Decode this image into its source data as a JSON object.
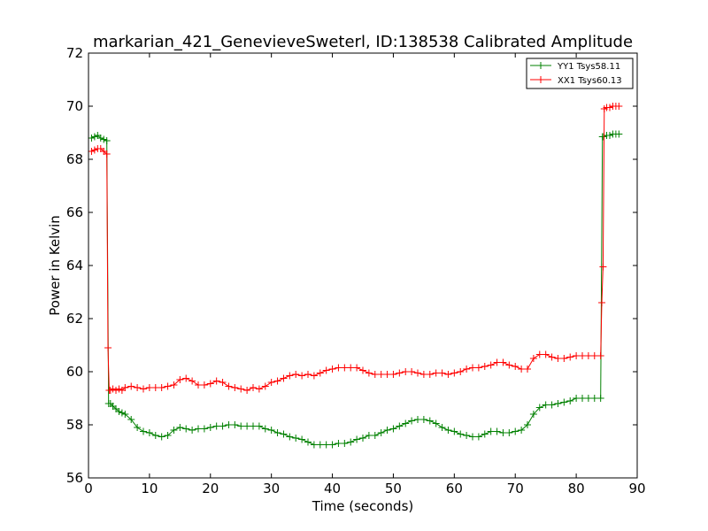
{
  "chart_data": {
    "type": "line",
    "title": "markarian_421_GenevieveSweterl, ID:138538 Calibrated Amplitude",
    "xlabel": "Time (seconds)",
    "ylabel": "Power in Kelvin",
    "xlim": [
      0,
      90
    ],
    "ylim": [
      56,
      72
    ],
    "xticks": [
      "0",
      "10",
      "20",
      "30",
      "40",
      "50",
      "60",
      "70",
      "80",
      "90"
    ],
    "yticks": [
      "56",
      "58",
      "60",
      "62",
      "64",
      "66",
      "68",
      "70",
      "72"
    ],
    "grid": false,
    "legend_position": "top-right",
    "marker": "plus",
    "series": [
      {
        "name": "YY1 Tsys58.11",
        "color": "#008000",
        "x": [
          0.5,
          1.0,
          1.5,
          2.0,
          2.5,
          3.0,
          3.3,
          3.6,
          4.0,
          4.5,
          5.0,
          5.5,
          6.0,
          7.0,
          8.0,
          9.0,
          10.0,
          11.0,
          12.0,
          13.0,
          14.0,
          15.0,
          16.0,
          17.0,
          18.0,
          19.0,
          20.0,
          21.0,
          22.0,
          23.0,
          24.0,
          25.0,
          26.0,
          27.0,
          28.0,
          29.0,
          30.0,
          31.0,
          32.0,
          33.0,
          34.0,
          35.0,
          36.0,
          37.0,
          38.0,
          39.0,
          40.0,
          41.0,
          42.0,
          43.0,
          44.0,
          45.0,
          46.0,
          47.0,
          48.0,
          49.0,
          50.0,
          51.0,
          52.0,
          53.0,
          54.0,
          55.0,
          56.0,
          57.0,
          58.0,
          59.0,
          60.0,
          61.0,
          62.0,
          63.0,
          64.0,
          65.0,
          66.0,
          67.0,
          68.0,
          69.0,
          70.0,
          71.0,
          72.0,
          73.0,
          74.0,
          75.0,
          76.0,
          77.0,
          78.0,
          79.0,
          80.0,
          81.0,
          82.0,
          83.0,
          84.0,
          84.3,
          84.5,
          85.0,
          85.5,
          86.0,
          86.5,
          87.0
        ],
        "y": [
          68.8,
          68.85,
          68.9,
          68.8,
          68.75,
          68.7,
          58.8,
          58.8,
          58.7,
          58.6,
          58.5,
          58.45,
          58.4,
          58.2,
          57.9,
          57.75,
          57.7,
          57.6,
          57.55,
          57.6,
          57.8,
          57.9,
          57.85,
          57.8,
          57.85,
          57.85,
          57.9,
          57.95,
          57.95,
          58.0,
          58.0,
          57.95,
          57.95,
          57.95,
          57.95,
          57.85,
          57.8,
          57.7,
          57.65,
          57.55,
          57.5,
          57.45,
          57.35,
          57.25,
          57.25,
          57.25,
          57.25,
          57.3,
          57.3,
          57.35,
          57.45,
          57.5,
          57.6,
          57.6,
          57.7,
          57.8,
          57.85,
          57.95,
          58.05,
          58.15,
          58.2,
          58.2,
          58.15,
          58.05,
          57.9,
          57.8,
          57.75,
          57.65,
          57.6,
          57.55,
          57.55,
          57.65,
          57.75,
          57.75,
          57.7,
          57.7,
          57.75,
          57.8,
          58.0,
          58.4,
          58.65,
          58.75,
          58.75,
          58.8,
          58.85,
          58.9,
          59.0,
          59.0,
          59.0,
          59.0,
          59.0,
          68.85,
          68.85,
          68.9,
          68.9,
          68.95,
          68.95,
          68.95
        ]
      },
      {
        "name": "XX1 Tsys60.13",
        "color": "#ff0000",
        "x": [
          0.5,
          1.0,
          1.5,
          2.0,
          2.5,
          3.0,
          3.2,
          3.4,
          3.6,
          4.0,
          4.5,
          5.0,
          5.5,
          6.0,
          7.0,
          8.0,
          9.0,
          10.0,
          11.0,
          12.0,
          13.0,
          14.0,
          15.0,
          16.0,
          17.0,
          18.0,
          19.0,
          20.0,
          21.0,
          22.0,
          23.0,
          24.0,
          25.0,
          26.0,
          27.0,
          28.0,
          29.0,
          30.0,
          31.0,
          32.0,
          33.0,
          34.0,
          35.0,
          36.0,
          37.0,
          38.0,
          39.0,
          40.0,
          41.0,
          42.0,
          43.0,
          44.0,
          45.0,
          46.0,
          47.0,
          48.0,
          49.0,
          50.0,
          51.0,
          52.0,
          53.0,
          54.0,
          55.0,
          56.0,
          57.0,
          58.0,
          59.0,
          60.0,
          61.0,
          62.0,
          63.0,
          64.0,
          65.0,
          66.0,
          67.0,
          68.0,
          69.0,
          70.0,
          71.0,
          72.0,
          73.0,
          74.0,
          75.0,
          76.0,
          77.0,
          78.0,
          79.0,
          80.0,
          81.0,
          82.0,
          83.0,
          84.0,
          84.2,
          84.4,
          84.6,
          85.0,
          85.5,
          86.0,
          86.5,
          87.0
        ],
        "y": [
          68.3,
          68.35,
          68.4,
          68.4,
          68.3,
          68.2,
          60.9,
          59.3,
          59.3,
          59.35,
          59.3,
          59.35,
          59.3,
          59.4,
          59.45,
          59.4,
          59.35,
          59.4,
          59.4,
          59.4,
          59.45,
          59.5,
          59.7,
          59.75,
          59.65,
          59.5,
          59.5,
          59.55,
          59.65,
          59.6,
          59.45,
          59.4,
          59.35,
          59.3,
          59.4,
          59.35,
          59.45,
          59.6,
          59.65,
          59.75,
          59.85,
          59.9,
          59.85,
          59.9,
          59.85,
          59.95,
          60.05,
          60.1,
          60.15,
          60.15,
          60.15,
          60.15,
          60.05,
          59.95,
          59.9,
          59.9,
          59.9,
          59.9,
          59.95,
          60.0,
          60.0,
          59.95,
          59.9,
          59.9,
          59.95,
          59.95,
          59.9,
          59.95,
          60.0,
          60.1,
          60.15,
          60.15,
          60.2,
          60.25,
          60.35,
          60.35,
          60.25,
          60.2,
          60.1,
          60.1,
          60.5,
          60.65,
          60.65,
          60.55,
          60.5,
          60.5,
          60.55,
          60.6,
          60.6,
          60.6,
          60.6,
          60.6,
          62.6,
          63.95,
          69.9,
          69.95,
          69.95,
          70.0,
          70.0,
          70.0
        ]
      }
    ]
  }
}
